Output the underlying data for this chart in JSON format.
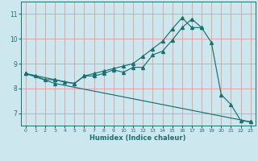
{
  "xlabel": "Humidex (Indice chaleur)",
  "bg_color": "#cce8ee",
  "grid_color": "#e8a0a0",
  "line_color": "#1a7070",
  "xlim": [
    -0.5,
    23.5
  ],
  "ylim": [
    6.5,
    11.5
  ],
  "xticks": [
    0,
    1,
    2,
    3,
    4,
    5,
    6,
    7,
    8,
    9,
    10,
    11,
    12,
    13,
    14,
    15,
    16,
    17,
    18,
    19,
    20,
    21,
    22,
    23
  ],
  "yticks": [
    7,
    8,
    9,
    10,
    11
  ],
  "line1_x": [
    0,
    1,
    2,
    3,
    4,
    5,
    6,
    7,
    8,
    9,
    10,
    11,
    12,
    13,
    14,
    15,
    16,
    17,
    18,
    19,
    20,
    21,
    22,
    23
  ],
  "line1_y": [
    8.6,
    8.5,
    8.35,
    8.35,
    8.25,
    8.2,
    8.5,
    8.5,
    8.6,
    8.75,
    8.65,
    8.85,
    8.85,
    9.35,
    9.5,
    9.95,
    10.45,
    10.8,
    10.45,
    9.85,
    7.75,
    7.35,
    6.7,
    6.65
  ],
  "line2_x": [
    0,
    3,
    5,
    6,
    7,
    8,
    9,
    10,
    11,
    12,
    13,
    14,
    15,
    16,
    17,
    18
  ],
  "line2_y": [
    8.6,
    8.35,
    8.2,
    8.5,
    8.6,
    8.7,
    8.8,
    8.9,
    9.0,
    9.3,
    9.6,
    9.9,
    10.4,
    10.85,
    10.45,
    10.45
  ],
  "line3_x": [
    0,
    3,
    23
  ],
  "line3_y": [
    8.6,
    8.2,
    6.65
  ]
}
